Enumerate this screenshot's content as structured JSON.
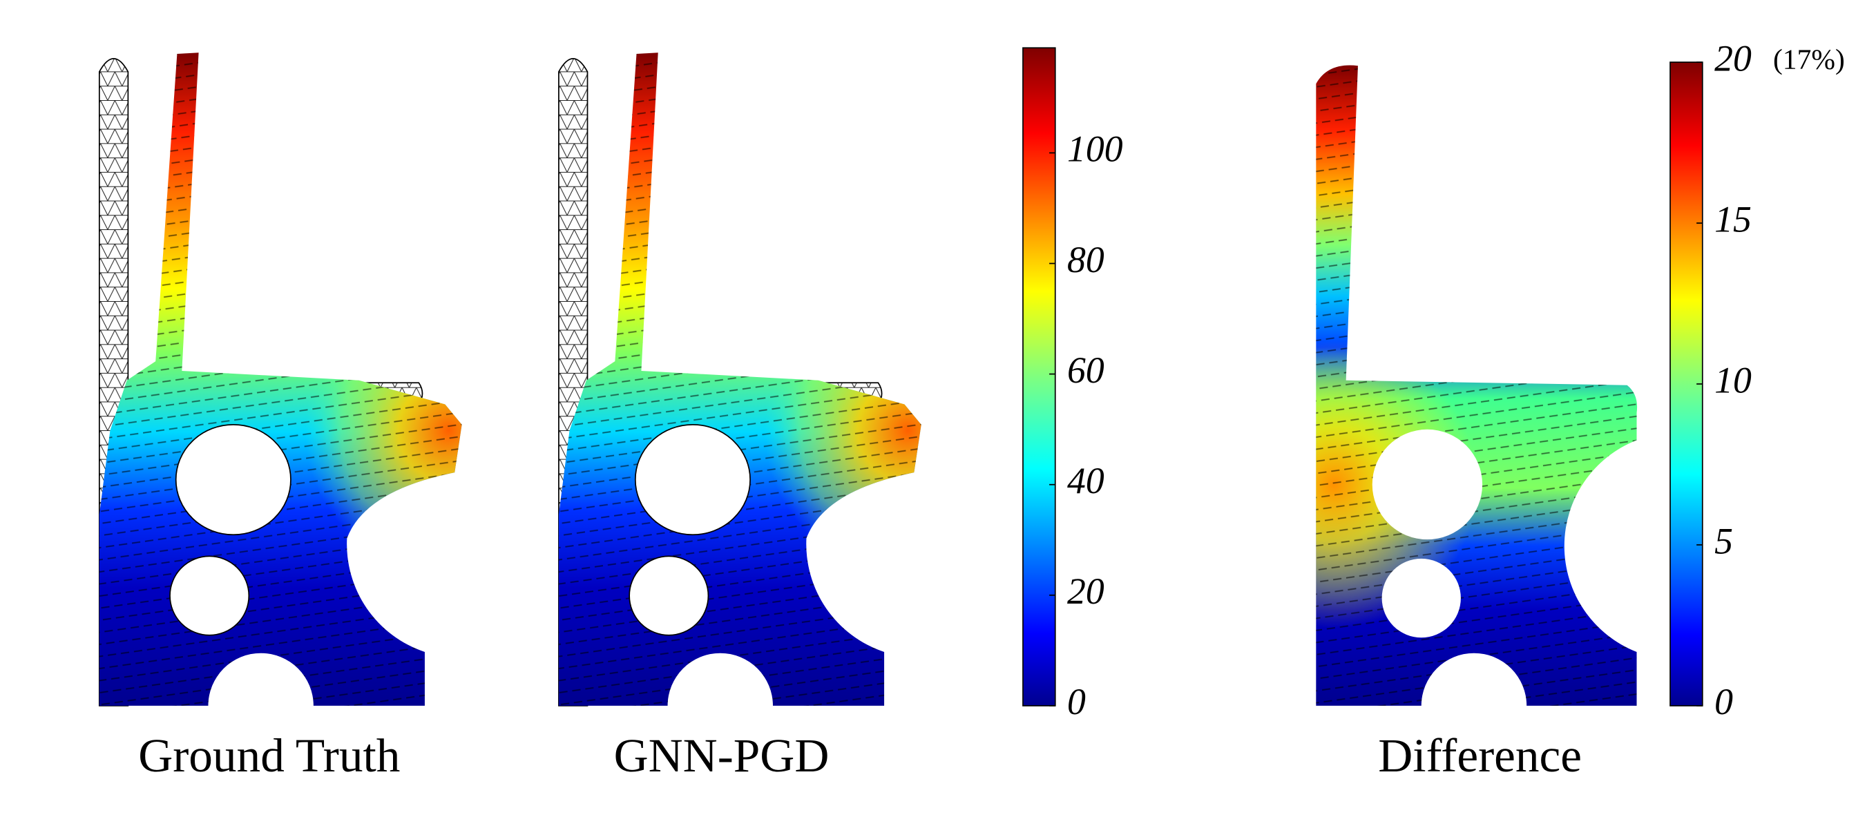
{
  "panels": [
    {
      "label": "Ground Truth"
    },
    {
      "label": "GNN-PGD"
    },
    {
      "label": "Difference"
    }
  ],
  "colorbars": [
    {
      "lim": [
        0,
        119
      ],
      "ticks": [
        0,
        20,
        40,
        60,
        80,
        100
      ]
    },
    {
      "lim": [
        0,
        20
      ],
      "ticks": [
        0,
        5,
        10,
        15,
        20
      ],
      "annotation": "(17%)"
    }
  ]
}
